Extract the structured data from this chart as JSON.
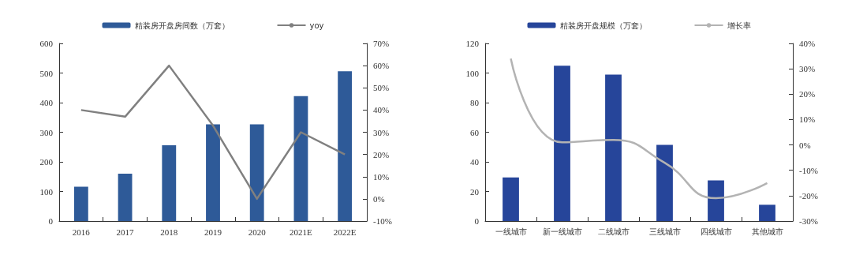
{
  "chart_data": [
    {
      "type": "bar",
      "categories": [
        "2016",
        "2017",
        "2018",
        "2019",
        "2020",
        "2021E",
        "2022E"
      ],
      "series": [
        {
          "name": "精装房开盘房间数（万套）",
          "color": "#2e5a98",
          "values": [
            116,
            160,
            256,
            327,
            327,
            422,
            506
          ]
        },
        {
          "name": "yoy",
          "type": "line",
          "axis": "y2",
          "color": "#808080",
          "values": [
            40,
            37,
            60,
            33,
            0,
            30,
            20
          ]
        }
      ],
      "ylim": [
        0,
        600
      ],
      "yticks": [
        0,
        100,
        200,
        300,
        400,
        500,
        600
      ],
      "y2lim": [
        -10,
        70
      ],
      "y2ticks": [
        {
          "value": -10,
          "label": "-10%"
        },
        {
          "value": 0,
          "label": "0%"
        },
        {
          "value": 10,
          "label": "10%"
        },
        {
          "value": 20,
          "label": "20%"
        },
        {
          "value": 30,
          "label": "30%"
        },
        {
          "value": 40,
          "label": "40%"
        },
        {
          "value": 50,
          "label": "50%"
        },
        {
          "value": 60,
          "label": "60%"
        },
        {
          "value": 70,
          "label": "70%"
        }
      ],
      "legend": "top",
      "grid": false,
      "marker": "none"
    },
    {
      "type": "bar",
      "categories": [
        "一线城市",
        "新一线城市",
        "二线城市",
        "三线城市",
        "四线城市",
        "其他城市"
      ],
      "series": [
        {
          "name": "精装房开盘规模（万套）",
          "color": "#26459a",
          "values": [
            29.5,
            105,
            99,
            51.5,
            27.5,
            11
          ]
        },
        {
          "name": "增长率",
          "type": "line",
          "axis": "y2",
          "color": "#b3b3b3",
          "values": [
            34,
            1,
            2,
            -7,
            -21,
            -15
          ]
        }
      ],
      "ylim": [
        0,
        120
      ],
      "yticks": [
        0,
        20,
        40,
        60,
        80,
        100,
        120
      ],
      "y2lim": [
        -30,
        40
      ],
      "y2ticks": [
        {
          "value": -30,
          "label": "-30%"
        },
        {
          "value": -20,
          "label": "-20%"
        },
        {
          "value": -10,
          "label": "-10%"
        },
        {
          "value": 0,
          "label": "0%"
        },
        {
          "value": 10,
          "label": "10%"
        },
        {
          "value": 20,
          "label": "20%"
        },
        {
          "value": 30,
          "label": "30%"
        },
        {
          "value": 40,
          "label": "40%"
        }
      ],
      "legend": "top",
      "grid": false,
      "marker": "none"
    }
  ]
}
